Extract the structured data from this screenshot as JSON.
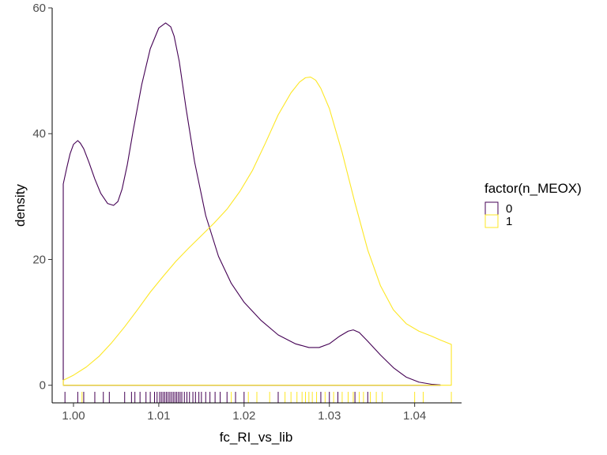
{
  "chart_data": {
    "type": "area",
    "xlabel": "fc_RI_vs_lib",
    "ylabel": "density",
    "xlim": [
      0.9975,
      1.0455
    ],
    "ylim": [
      -2.8,
      60
    ],
    "x_ticks": [
      1.0,
      1.01,
      1.02,
      1.03,
      1.04
    ],
    "x_tick_labels": [
      "1.00",
      "1.01",
      "1.02",
      "1.03",
      "1.04"
    ],
    "y_ticks": [
      0,
      20,
      40,
      60
    ],
    "y_tick_labels": [
      "0",
      "20",
      "40",
      "60"
    ],
    "grid": false,
    "legend": {
      "title": "factor(n_MEOX)",
      "placement": "right",
      "entries": [
        {
          "label": "0",
          "color": "#440154"
        },
        {
          "label": "1",
          "color": "#FDE725"
        }
      ]
    },
    "series": [
      {
        "name": "0",
        "color": "#440154",
        "x": [
          0.9988,
          0.9992,
          0.9996,
          1.0,
          1.0005,
          1.0008,
          1.0012,
          1.0018,
          1.0025,
          1.0032,
          1.004,
          1.0047,
          1.0052,
          1.0057,
          1.0063,
          1.007,
          1.008,
          1.009,
          1.01,
          1.0108,
          1.0114,
          1.0118,
          1.0124,
          1.0132,
          1.0142,
          1.0155,
          1.017,
          1.0185,
          1.02,
          1.022,
          1.024,
          1.026,
          1.0276,
          1.0288,
          1.03,
          1.0312,
          1.0322,
          1.0328,
          1.0335,
          1.0345,
          1.036,
          1.0375,
          1.039,
          1.0405,
          1.042,
          1.043
        ],
        "y": [
          32,
          34.5,
          36.8,
          38.3,
          38.9,
          38.5,
          37.6,
          35.5,
          32.8,
          30.5,
          28.9,
          28.6,
          29.2,
          31.2,
          35.0,
          40.5,
          47.8,
          53.5,
          56.8,
          57.6,
          57.0,
          55.5,
          51.5,
          44.0,
          35.5,
          27.0,
          20.5,
          16.2,
          13.2,
          10.3,
          8.0,
          6.6,
          6.0,
          6.0,
          6.6,
          7.8,
          8.6,
          8.8,
          8.4,
          7.0,
          4.8,
          2.8,
          1.3,
          0.5,
          0.15,
          0.05
        ]
      },
      {
        "name": "1",
        "color": "#FDE725",
        "x": [
          0.9988,
          1.0,
          1.0015,
          1.003,
          1.0045,
          1.006,
          1.0075,
          1.009,
          1.0105,
          1.012,
          1.0135,
          1.015,
          1.0165,
          1.018,
          1.0195,
          1.021,
          1.0225,
          1.024,
          1.0255,
          1.0265,
          1.0272,
          1.0278,
          1.0284,
          1.029,
          1.03,
          1.0315,
          1.033,
          1.0345,
          1.036,
          1.0375,
          1.039,
          1.0405,
          1.042,
          1.043,
          1.0443
        ],
        "y": [
          0.8,
          1.6,
          2.9,
          4.6,
          6.8,
          9.3,
          12.0,
          14.8,
          17.3,
          19.7,
          21.8,
          23.8,
          25.8,
          28.0,
          30.8,
          34.2,
          38.5,
          43.0,
          46.5,
          48.2,
          48.9,
          49.0,
          48.5,
          47.2,
          44.0,
          37.0,
          29.0,
          21.5,
          15.8,
          12.0,
          9.8,
          8.6,
          7.8,
          7.2,
          6.5
        ]
      }
    ],
    "rug": [
      {
        "series": "0",
        "x": [
          0.999,
          1.0005,
          1.0012,
          1.0025,
          1.0035,
          1.0042,
          1.006,
          1.0068,
          1.0072,
          1.0078,
          1.0085,
          1.009,
          1.0095,
          1.0098,
          1.0101,
          1.0103,
          1.0105,
          1.0107,
          1.0109,
          1.0111,
          1.0113,
          1.0115,
          1.0117,
          1.0119,
          1.0121,
          1.0123,
          1.0125,
          1.0127,
          1.013,
          1.0133,
          1.0136,
          1.014,
          1.0143,
          1.0147,
          1.015,
          1.0155,
          1.016,
          1.0166,
          1.0172,
          1.018,
          1.019,
          1.02,
          1.0215,
          1.024,
          1.029,
          1.03,
          1.031,
          1.033,
          1.0345
        ]
      },
      {
        "series": "1",
        "x": [
          1.001,
          1.0185,
          1.0205,
          1.0215,
          1.023,
          1.0248,
          1.0255,
          1.0262,
          1.0268,
          1.0272,
          1.0276,
          1.028,
          1.0285,
          1.0295,
          1.0305,
          1.0315,
          1.0322,
          1.0328,
          1.0335,
          1.034,
          1.0348,
          1.0355,
          1.0362,
          1.04,
          1.041,
          1.0443
        ]
      }
    ]
  }
}
